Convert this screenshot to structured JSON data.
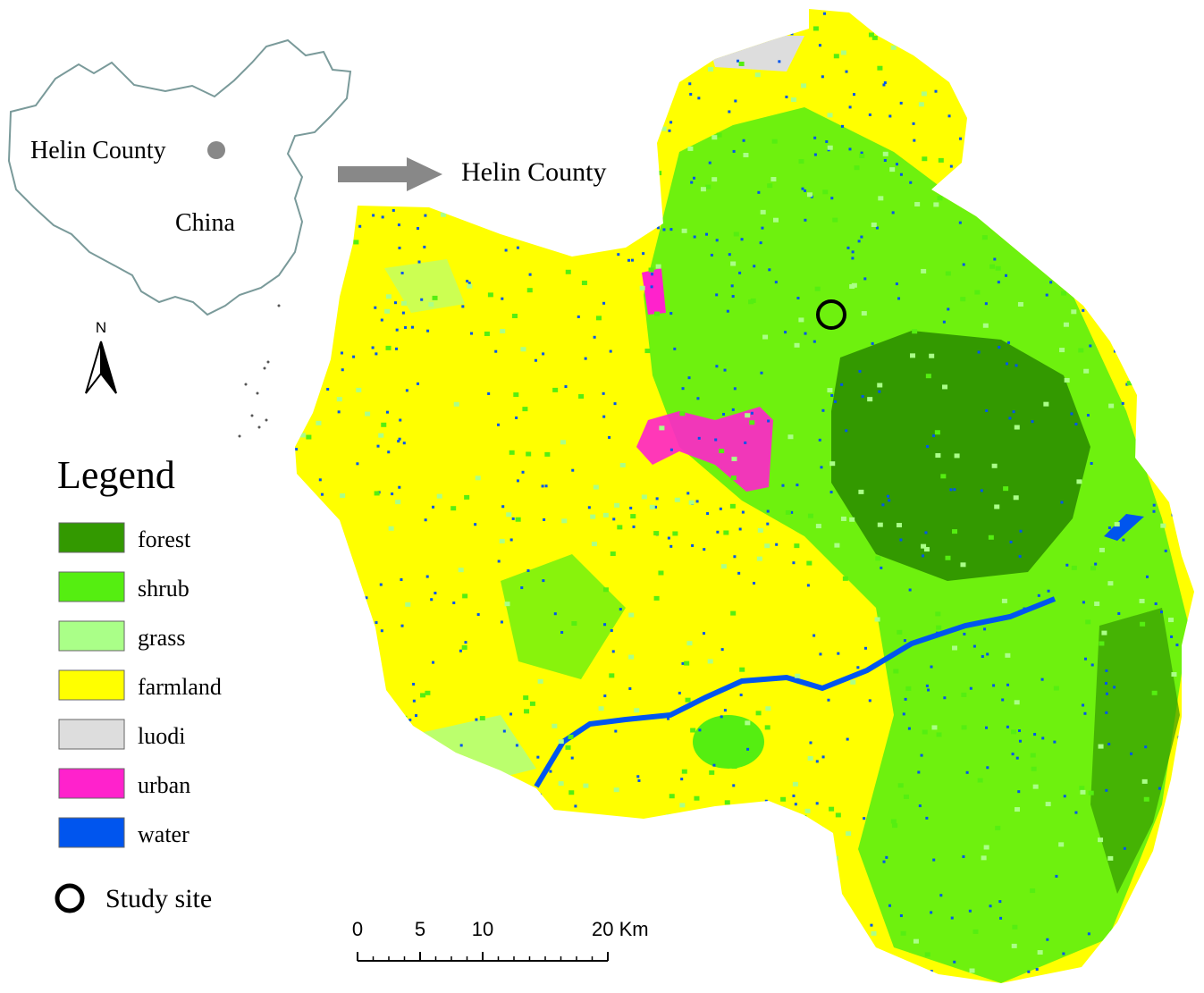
{
  "inset": {
    "location_label": "Helin County",
    "country_label": "China"
  },
  "arrow_label": "Helin County",
  "north_label": "N",
  "legend": {
    "title": "Legend",
    "items": [
      {
        "name": "forest",
        "color": "#339900"
      },
      {
        "name": "shrub",
        "color": "#55ee11"
      },
      {
        "name": "grass",
        "color": "#aaff88"
      },
      {
        "name": "farmland",
        "color": "#ffff00"
      },
      {
        "name": "luodi",
        "color": "#dddddd"
      },
      {
        "name": "urban",
        "color": "#ff22cc"
      },
      {
        "name": "water",
        "color": "#0055ee"
      }
    ],
    "study_site": "Study site"
  },
  "scale": {
    "ticks": [
      0,
      5,
      10,
      {
        "value": 20,
        "label": "20 Km"
      }
    ]
  }
}
